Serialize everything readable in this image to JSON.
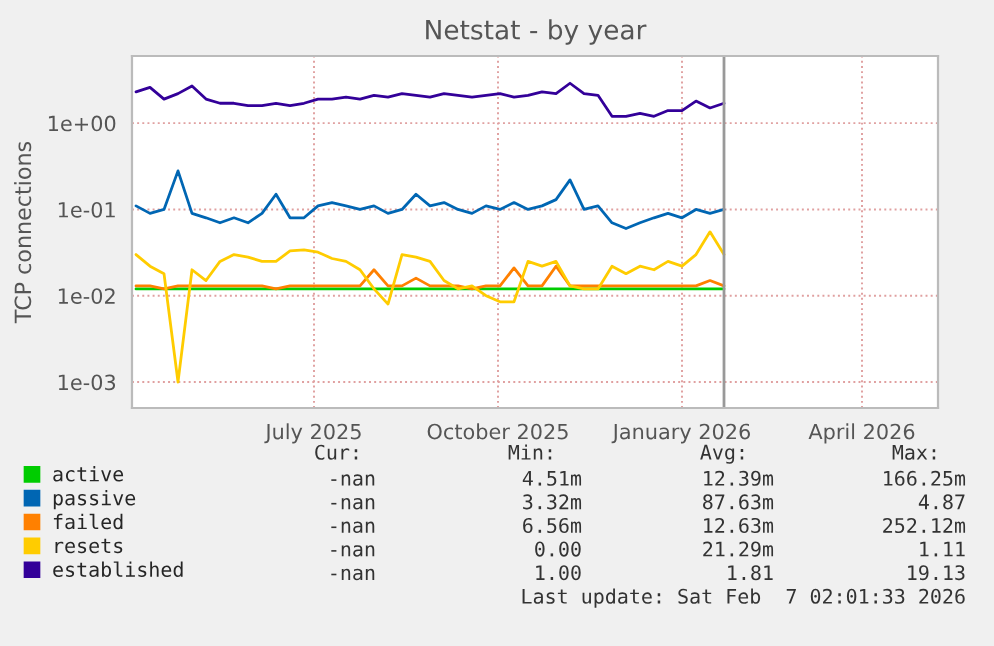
{
  "chart_data": {
    "type": "line",
    "title": "Netstat - by year",
    "ylabel": "TCP connections",
    "x": [
      "2025-04-03",
      "2025-04-10",
      "2025-04-17",
      "2025-04-24",
      "2025-05-01",
      "2025-05-08",
      "2025-05-15",
      "2025-05-22",
      "2025-05-29",
      "2025-06-05",
      "2025-06-12",
      "2025-06-19",
      "2025-06-26",
      "2025-07-03",
      "2025-07-10",
      "2025-07-17",
      "2025-07-24",
      "2025-07-31",
      "2025-08-07",
      "2025-08-14",
      "2025-08-21",
      "2025-08-28",
      "2025-09-04",
      "2025-09-11",
      "2025-09-18",
      "2025-09-25",
      "2025-10-02",
      "2025-10-09",
      "2025-10-16",
      "2025-10-23",
      "2025-10-30",
      "2025-11-06",
      "2025-11-13",
      "2025-11-20",
      "2025-11-27",
      "2025-12-04",
      "2025-12-11",
      "2025-12-18",
      "2025-12-25",
      "2026-01-01",
      "2026-01-08",
      "2026-01-15",
      "2026-01-22"
    ],
    "series": [
      {
        "name": "active",
        "color": "#00cc00",
        "values": [
          0.012,
          0.012,
          0.012,
          0.012,
          0.012,
          0.012,
          0.012,
          0.012,
          0.012,
          0.012,
          0.012,
          0.012,
          0.012,
          0.012,
          0.012,
          0.012,
          0.012,
          0.012,
          0.012,
          0.012,
          0.012,
          0.012,
          0.012,
          0.012,
          0.012,
          0.012,
          0.012,
          0.012,
          0.012,
          0.012,
          0.012,
          0.012,
          0.012,
          0.012,
          0.012,
          0.012,
          0.012,
          0.012,
          0.012,
          0.012,
          0.012,
          0.012,
          0.012
        ]
      },
      {
        "name": "passive",
        "color": "#0066b3",
        "values": [
          0.11,
          0.09,
          0.1,
          0.28,
          0.09,
          0.08,
          0.07,
          0.08,
          0.07,
          0.09,
          0.15,
          0.08,
          0.08,
          0.11,
          0.12,
          0.11,
          0.1,
          0.11,
          0.09,
          0.1,
          0.15,
          0.11,
          0.12,
          0.1,
          0.09,
          0.11,
          0.1,
          0.12,
          0.1,
          0.11,
          0.13,
          0.22,
          0.1,
          0.11,
          0.07,
          0.06,
          0.07,
          0.08,
          0.09,
          0.08,
          0.1,
          0.09,
          0.1
        ]
      },
      {
        "name": "failed",
        "color": "#ff8000",
        "values": [
          0.013,
          0.013,
          0.012,
          0.013,
          0.013,
          0.013,
          0.013,
          0.013,
          0.013,
          0.013,
          0.012,
          0.013,
          0.013,
          0.013,
          0.013,
          0.013,
          0.013,
          0.02,
          0.013,
          0.013,
          0.016,
          0.013,
          0.013,
          0.013,
          0.012,
          0.013,
          0.013,
          0.021,
          0.013,
          0.013,
          0.022,
          0.013,
          0.013,
          0.013,
          0.013,
          0.013,
          0.013,
          0.013,
          0.013,
          0.013,
          0.013,
          0.015,
          0.013
        ]
      },
      {
        "name": "resets",
        "color": "#ffcc00",
        "values": [
          0.03,
          0.022,
          0.018,
          0.001,
          0.02,
          0.015,
          0.025,
          0.03,
          0.028,
          0.025,
          0.025,
          0.033,
          0.034,
          0.032,
          0.027,
          0.025,
          0.02,
          0.012,
          0.008,
          0.03,
          0.028,
          0.025,
          0.015,
          0.012,
          0.013,
          0.01,
          0.0085,
          0.0085,
          0.025,
          0.022,
          0.025,
          0.013,
          0.012,
          0.012,
          0.022,
          0.018,
          0.022,
          0.02,
          0.025,
          0.022,
          0.03,
          0.055,
          0.03
        ]
      },
      {
        "name": "established",
        "color": "#330099",
        "values": [
          2.3,
          2.6,
          1.9,
          2.2,
          2.7,
          1.9,
          1.7,
          1.7,
          1.6,
          1.6,
          1.7,
          1.6,
          1.7,
          1.9,
          1.9,
          2.0,
          1.9,
          2.1,
          2.0,
          2.2,
          2.1,
          2.0,
          2.2,
          2.1,
          2.0,
          2.1,
          2.2,
          2.0,
          2.1,
          2.3,
          2.2,
          2.9,
          2.2,
          2.1,
          1.2,
          1.2,
          1.3,
          1.2,
          1.4,
          1.4,
          1.8,
          1.5,
          1.7
        ]
      }
    ],
    "log": "y",
    "ylim": [
      0.0005,
      6
    ],
    "yticks": [
      {
        "value": 0.001,
        "label": "1e-03"
      },
      {
        "value": 0.01,
        "label": "1e-02"
      },
      {
        "value": 0.1,
        "label": "1e-01"
      },
      {
        "value": 1,
        "label": "1e+00"
      }
    ],
    "xlim": [
      "2025-04-01",
      "2026-05-09"
    ],
    "xticks": [
      {
        "value": "2025-07-01",
        "label": "July 2025"
      },
      {
        "value": "2025-10-01",
        "label": "October 2025"
      },
      {
        "value": "2026-01-01",
        "label": "January 2026"
      },
      {
        "value": "2026-04-01",
        "label": "April 2026"
      }
    ],
    "ref_lines": [
      {
        "axis": "x",
        "value": "2026-01-22",
        "color": "#999999"
      }
    ],
    "grid": true,
    "legend": "bottom left",
    "line_style": "solid",
    "annotations": [
      "Cur:",
      "Min:",
      "Avg:",
      "Max:",
      "-nan",
      "4.51m",
      "12.39m",
      "166.25m",
      "-nan",
      "3.32m",
      "87.63m",
      "4.87",
      "-nan",
      "6.56m",
      "12.63m",
      "252.12m",
      "-nan",
      "0.00",
      "21.29m",
      "1.11",
      "-nan",
      "1.00",
      "1.81",
      "19.13",
      "Last update: Sat Feb  7 02:01:33 2026"
    ]
  }
}
